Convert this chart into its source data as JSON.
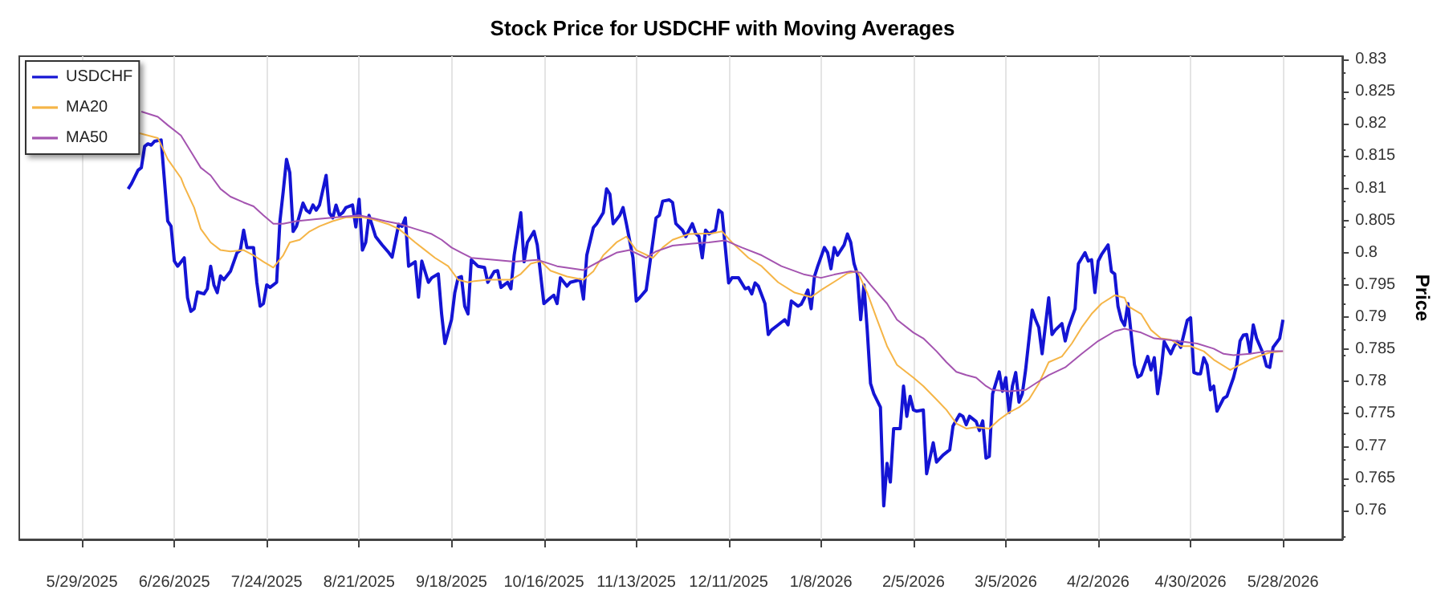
{
  "chart_data": {
    "type": "line",
    "title": "Stock Price for USDCHF with Moving Averages",
    "ylabel": "Price",
    "xlim": [
      "2025-05-10",
      "2026-06-15"
    ],
    "xticks": [
      {
        "value": "2025-05-29",
        "label": "5/29/2025"
      },
      {
        "value": "2025-06-26",
        "label": "6/26/2025"
      },
      {
        "value": "2025-07-24",
        "label": "7/24/2025"
      },
      {
        "value": "2025-08-21",
        "label": "8/21/2025"
      },
      {
        "value": "2025-09-18",
        "label": "9/18/2025"
      },
      {
        "value": "2025-10-16",
        "label": "10/16/2025"
      },
      {
        "value": "2025-11-13",
        "label": "11/13/2025"
      },
      {
        "value": "2025-12-11",
        "label": "12/11/2025"
      },
      {
        "value": "2026-01-08",
        "label": "1/8/2026"
      },
      {
        "value": "2026-02-05",
        "label": "2/5/2026"
      },
      {
        "value": "2026-03-05",
        "label": "3/5/2026"
      },
      {
        "value": "2026-04-02",
        "label": "4/2/2026"
      },
      {
        "value": "2026-04-30",
        "label": "4/30/2026"
      },
      {
        "value": "2026-05-28",
        "label": "5/28/2026"
      }
    ],
    "ylim": [
      0.7555,
      0.8305
    ],
    "yticks": [
      0.76,
      0.765,
      0.77,
      0.775,
      0.78,
      0.785,
      0.79,
      0.795,
      0.8,
      0.805,
      0.81,
      0.815,
      0.82,
      0.825,
      0.83
    ],
    "grid": "x",
    "legend": "top left",
    "marker": "none",
    "line_style": "solid",
    "series": [
      {
        "name": "USDCHF",
        "color": "#1414d4",
        "x": [
          "2025-06-12",
          "2025-06-13",
          "2025-06-15",
          "2025-06-16",
          "2025-06-17",
          "2025-06-18",
          "2025-06-19",
          "2025-06-20",
          "2025-06-22",
          "2025-06-24",
          "2025-06-25",
          "2025-06-26",
          "2025-06-27",
          "2025-06-29",
          "2025-06-30",
          "2025-07-01",
          "2025-07-02",
          "2025-07-03",
          "2025-07-05",
          "2025-07-06",
          "2025-07-07",
          "2025-07-08",
          "2025-07-09",
          "2025-07-10",
          "2025-07-11",
          "2025-07-13",
          "2025-07-15",
          "2025-07-16",
          "2025-07-17",
          "2025-07-18",
          "2025-07-20",
          "2025-07-21",
          "2025-07-22",
          "2025-07-23",
          "2025-07-24",
          "2025-07-25",
          "2025-07-27",
          "2025-07-28",
          "2025-07-29",
          "2025-07-30",
          "2025-07-31",
          "2025-08-01",
          "2025-08-02",
          "2025-08-04",
          "2025-08-05",
          "2025-08-06",
          "2025-08-07",
          "2025-08-08",
          "2025-08-09",
          "2025-08-11",
          "2025-08-12",
          "2025-08-13",
          "2025-08-14",
          "2025-08-15",
          "2025-08-16",
          "2025-08-17",
          "2025-08-19",
          "2025-08-20",
          "2025-08-21",
          "2025-08-22",
          "2025-08-23",
          "2025-08-24",
          "2025-08-26",
          "2025-08-28",
          "2025-08-30",
          "2025-08-31",
          "2025-09-02",
          "2025-09-03",
          "2025-09-04",
          "2025-09-05",
          "2025-09-07",
          "2025-09-08",
          "2025-09-09",
          "2025-09-11",
          "2025-09-12",
          "2025-09-14",
          "2025-09-15",
          "2025-09-16",
          "2025-09-18",
          "2025-09-19",
          "2025-09-20",
          "2025-09-21",
          "2025-09-22",
          "2025-09-23",
          "2025-09-24",
          "2025-09-26",
          "2025-09-28",
          "2025-09-29",
          "2025-10-01",
          "2025-10-02",
          "2025-10-03",
          "2025-10-04",
          "2025-10-05",
          "2025-10-06",
          "2025-10-07",
          "2025-10-09",
          "2025-10-10",
          "2025-10-11",
          "2025-10-13",
          "2025-10-14",
          "2025-10-16",
          "2025-10-18",
          "2025-10-19",
          "2025-10-20",
          "2025-10-21",
          "2025-10-23",
          "2025-10-24",
          "2025-10-27",
          "2025-10-28",
          "2025-10-29",
          "2025-10-31",
          "2025-11-01",
          "2025-11-03",
          "2025-11-04",
          "2025-11-05",
          "2025-11-06",
          "2025-11-08",
          "2025-11-09",
          "2025-11-10",
          "2025-11-12",
          "2025-11-13",
          "2025-11-14",
          "2025-11-16",
          "2025-11-17",
          "2025-11-19",
          "2025-11-20",
          "2025-11-21",
          "2025-11-23",
          "2025-11-24",
          "2025-11-25",
          "2025-11-27",
          "2025-11-28",
          "2025-11-30",
          "2025-12-01",
          "2025-12-02",
          "2025-12-03",
          "2025-12-04",
          "2025-12-05",
          "2025-12-07",
          "2025-12-08",
          "2025-12-09",
          "2025-12-11",
          "2025-12-12",
          "2025-12-14",
          "2025-12-16",
          "2025-12-17",
          "2025-12-18",
          "2025-12-19",
          "2025-12-20",
          "2025-12-22",
          "2025-12-23",
          "2025-12-24",
          "2025-12-26",
          "2025-12-28",
          "2025-12-29",
          "2025-12-30",
          "2026-01-01",
          "2026-01-02",
          "2026-01-03",
          "2026-01-04",
          "2026-01-05",
          "2026-01-06",
          "2026-01-07",
          "2026-01-09",
          "2026-01-10",
          "2026-01-11",
          "2026-01-12",
          "2026-01-13",
          "2026-01-15",
          "2026-01-16",
          "2026-01-17",
          "2026-01-18",
          "2026-01-19",
          "2026-01-20",
          "2026-01-21",
          "2026-01-22",
          "2026-01-23",
          "2026-01-24",
          "2026-01-26",
          "2026-01-27",
          "2026-01-28",
          "2026-01-29",
          "2026-01-30",
          "2026-02-01",
          "2026-02-02",
          "2026-02-03",
          "2026-02-04",
          "2026-02-05",
          "2026-02-06",
          "2026-02-08",
          "2026-02-09",
          "2026-02-11",
          "2026-02-12",
          "2026-02-14",
          "2026-02-16",
          "2026-02-17",
          "2026-02-19",
          "2026-02-20",
          "2026-02-21",
          "2026-02-22",
          "2026-02-24",
          "2026-02-25",
          "2026-02-26",
          "2026-02-27",
          "2026-02-28",
          "2026-03-01",
          "2026-03-03",
          "2026-03-04",
          "2026-03-05",
          "2026-03-06",
          "2026-03-07",
          "2026-03-08",
          "2026-03-09",
          "2026-03-10",
          "2026-03-11",
          "2026-03-13",
          "2026-03-14",
          "2026-03-15",
          "2026-03-16",
          "2026-03-18",
          "2026-03-19",
          "2026-03-20",
          "2026-03-22",
          "2026-03-23",
          "2026-03-24",
          "2026-03-26",
          "2026-03-27",
          "2026-03-29",
          "2026-03-30",
          "2026-03-31",
          "2026-04-01",
          "2026-04-02",
          "2026-04-03",
          "2026-04-05",
          "2026-04-06",
          "2026-04-07",
          "2026-04-08",
          "2026-04-09",
          "2026-04-10",
          "2026-04-11",
          "2026-04-13",
          "2026-04-14",
          "2026-04-15",
          "2026-04-17",
          "2026-04-18",
          "2026-04-19",
          "2026-04-20",
          "2026-04-21",
          "2026-04-22",
          "2026-04-24",
          "2026-04-25",
          "2026-04-26",
          "2026-04-27",
          "2026-04-29",
          "2026-04-30",
          "2026-05-01",
          "2026-05-02",
          "2026-05-03",
          "2026-05-04",
          "2026-05-05",
          "2026-05-06",
          "2026-05-07",
          "2026-05-08",
          "2026-05-09",
          "2026-05-10",
          "2026-05-11",
          "2026-05-13",
          "2026-05-14",
          "2026-05-15",
          "2026-05-16",
          "2026-05-17",
          "2026-05-18",
          "2026-05-19",
          "2026-05-20",
          "2026-05-22",
          "2026-05-23",
          "2026-05-24",
          "2026-05-25",
          "2026-05-27",
          "2026-05-28"
        ],
        "values": [
          0.8099,
          0.8107,
          0.8128,
          0.8132,
          0.8165,
          0.8169,
          0.8167,
          0.8173,
          0.8175,
          0.8049,
          0.8041,
          0.7987,
          0.7979,
          0.7992,
          0.793,
          0.7909,
          0.7913,
          0.7939,
          0.7936,
          0.7944,
          0.7979,
          0.795,
          0.7938,
          0.7964,
          0.7958,
          0.7971,
          0.8,
          0.8004,
          0.8035,
          0.8008,
          0.8008,
          0.7954,
          0.7917,
          0.7921,
          0.795,
          0.7946,
          0.7954,
          0.8049,
          0.8095,
          0.8145,
          0.8124,
          0.8033,
          0.8041,
          0.8077,
          0.8066,
          0.8062,
          0.8074,
          0.8066,
          0.8074,
          0.812,
          0.8062,
          0.8054,
          0.8074,
          0.8058,
          0.8062,
          0.807,
          0.8074,
          0.804,
          0.8083,
          0.8004,
          0.8016,
          0.8058,
          0.8025,
          0.8012,
          0.8,
          0.7993,
          0.8044,
          0.8041,
          0.8054,
          0.7979,
          0.7986,
          0.7931,
          0.7987,
          0.7954,
          0.7961,
          0.7967,
          0.7905,
          0.7859,
          0.7896,
          0.7938,
          0.7961,
          0.7963,
          0.7917,
          0.7905,
          0.7989,
          0.7979,
          0.7977,
          0.7954,
          0.7971,
          0.7972,
          0.7946,
          0.795,
          0.7954,
          0.7944,
          0.7996,
          0.8062,
          0.7986,
          0.8016,
          0.8033,
          0.8012,
          0.7921,
          0.793,
          0.7934,
          0.7921,
          0.7961,
          0.7948,
          0.7954,
          0.7958,
          0.7928,
          0.7996,
          0.8039,
          0.8045,
          0.8062,
          0.8099,
          0.8091,
          0.8045,
          0.8058,
          0.807,
          0.8045,
          0.7992,
          0.7925,
          0.793,
          0.7942,
          0.7979,
          0.8054,
          0.8058,
          0.808,
          0.8082,
          0.8078,
          0.8045,
          0.8035,
          0.8025,
          0.8045,
          0.803,
          0.8025,
          0.7992,
          0.8035,
          0.8029,
          0.8035,
          0.8066,
          0.8062,
          0.7953,
          0.7961,
          0.7961,
          0.7944,
          0.7946,
          0.7936,
          0.7953,
          0.7948,
          0.7921,
          0.7873,
          0.788,
          0.7888,
          0.7896,
          0.7888,
          0.7925,
          0.7917,
          0.792,
          0.793,
          0.7942,
          0.7913,
          0.7963,
          0.7979,
          0.8008,
          0.8,
          0.7975,
          0.8008,
          0.7996,
          0.8012,
          0.8029,
          0.8016,
          0.7983,
          0.7967,
          0.7896,
          0.795,
          0.788,
          0.7797,
          0.7781,
          0.776,
          0.7607,
          0.7673,
          0.7644,
          0.7727,
          0.7727,
          0.7793,
          0.7746,
          0.7777,
          0.7756,
          0.7754,
          0.7756,
          0.7657,
          0.7705,
          0.7675,
          0.7686,
          0.7694,
          0.7731,
          0.7749,
          0.7746,
          0.7733,
          0.7746,
          0.7738,
          0.7724,
          0.7739,
          0.7681,
          0.7684,
          0.7781,
          0.7815,
          0.7785,
          0.7806,
          0.7752,
          0.7793,
          0.7814,
          0.7768,
          0.7781,
          0.7818,
          0.7911,
          0.7896,
          0.7884,
          0.7843,
          0.793,
          0.7873,
          0.788,
          0.789,
          0.7863,
          0.7884,
          0.7913,
          0.7983,
          0.8,
          0.7987,
          0.7989,
          0.7938,
          0.7987,
          0.7997,
          0.8012,
          0.7971,
          0.7967,
          0.7917,
          0.7896,
          0.7887,
          0.7921,
          0.7826,
          0.7807,
          0.781,
          0.7839,
          0.7818,
          0.7837,
          0.7781,
          0.7814,
          0.7862,
          0.7843,
          0.7855,
          0.7862,
          0.7853,
          0.7895,
          0.7899,
          0.7814,
          0.7812,
          0.7812,
          0.7837,
          0.7826,
          0.7787,
          0.7793,
          0.7754,
          0.7764,
          0.7774,
          0.7777,
          0.7806,
          0.7826,
          0.7863,
          0.7872,
          0.7873,
          0.7845,
          0.7888,
          0.7867,
          0.7843,
          0.7824,
          0.7822,
          0.7853,
          0.7867,
          0.7896
        ]
      },
      {
        "name": "MA20",
        "color": "#f5b547",
        "x": [
          "2025-06-15",
          "2025-06-18",
          "2025-06-21",
          "2025-06-24",
          "2025-06-28",
          "2025-06-29",
          "2025-07-02",
          "2025-07-04",
          "2025-07-07",
          "2025-07-10",
          "2025-07-13",
          "2025-07-17",
          "2025-07-20",
          "2025-07-23",
          "2025-07-26",
          "2025-07-29",
          "2025-07-31",
          "2025-08-03",
          "2025-08-06",
          "2025-08-09",
          "2025-08-13",
          "2025-08-17",
          "2025-08-22",
          "2025-08-25",
          "2025-08-30",
          "2025-09-02",
          "2025-09-07",
          "2025-09-10",
          "2025-09-13",
          "2025-09-17",
          "2025-09-20",
          "2025-09-23",
          "2025-09-25",
          "2025-09-29",
          "2025-10-06",
          "2025-10-09",
          "2025-10-12",
          "2025-10-15",
          "2025-10-18",
          "2025-10-23",
          "2025-10-28",
          "2025-10-31",
          "2025-11-03",
          "2025-11-07",
          "2025-11-10",
          "2025-11-13",
          "2025-11-18",
          "2025-11-21",
          "2025-11-24",
          "2025-11-29",
          "2025-12-06",
          "2025-12-09",
          "2025-12-12",
          "2025-12-17",
          "2025-12-21",
          "2025-12-26",
          "2025-12-31",
          "2026-01-05",
          "2026-01-08",
          "2026-01-13",
          "2026-01-16",
          "2026-01-19",
          "2026-01-22",
          "2026-01-25",
          "2026-01-28",
          "2026-01-31",
          "2026-02-05",
          "2026-02-08",
          "2026-02-12",
          "2026-02-15",
          "2026-02-18",
          "2026-02-21",
          "2026-02-24",
          "2026-02-28",
          "2026-03-03",
          "2026-03-06",
          "2026-03-09",
          "2026-03-12",
          "2026-03-15",
          "2026-03-18",
          "2026-03-22",
          "2026-03-25",
          "2026-03-28",
          "2026-03-31",
          "2026-04-03",
          "2026-04-07",
          "2026-04-10",
          "2026-04-11",
          "2026-04-15",
          "2026-04-18",
          "2026-04-21",
          "2026-04-24",
          "2026-04-27",
          "2026-04-30",
          "2026-05-04",
          "2026-05-07",
          "2026-05-12",
          "2026-05-15",
          "2026-05-18",
          "2026-05-21",
          "2026-05-24",
          "2026-05-28"
        ],
        "values": [
          0.8186,
          0.8182,
          0.8178,
          0.8145,
          0.8116,
          0.8103,
          0.807,
          0.8037,
          0.8016,
          0.8004,
          0.8002,
          0.8004,
          0.7996,
          0.7986,
          0.7977,
          0.7996,
          0.8016,
          0.802,
          0.8033,
          0.8041,
          0.8049,
          0.8055,
          0.8055,
          0.8052,
          0.8044,
          0.8037,
          0.8016,
          0.8004,
          0.7992,
          0.7979,
          0.7958,
          0.7954,
          0.7956,
          0.7958,
          0.7958,
          0.7967,
          0.7983,
          0.7987,
          0.7972,
          0.7963,
          0.7958,
          0.7971,
          0.7996,
          0.8016,
          0.8025,
          0.8004,
          0.7992,
          0.8008,
          0.802,
          0.8029,
          0.803,
          0.8033,
          0.8016,
          0.7992,
          0.7979,
          0.7954,
          0.7938,
          0.7931,
          0.7942,
          0.7958,
          0.7968,
          0.7971,
          0.7938,
          0.7896,
          0.7855,
          0.7826,
          0.7806,
          0.7793,
          0.7772,
          0.7756,
          0.7735,
          0.7727,
          0.7729,
          0.7727,
          0.7741,
          0.7752,
          0.776,
          0.7772,
          0.7797,
          0.783,
          0.7839,
          0.7859,
          0.7884,
          0.7905,
          0.7921,
          0.7934,
          0.793,
          0.7917,
          0.7905,
          0.788,
          0.7867,
          0.7865,
          0.7855,
          0.7855,
          0.7847,
          0.7834,
          0.7818,
          0.7826,
          0.7834,
          0.784,
          0.7845,
          0.7847
        ]
      },
      {
        "name": "MA50",
        "color": "#a454b0",
        "x": [
          "2025-06-16",
          "2025-06-21",
          "2025-06-24",
          "2025-06-28",
          "2025-07-01",
          "2025-07-04",
          "2025-07-07",
          "2025-07-10",
          "2025-07-13",
          "2025-07-17",
          "2025-07-20",
          "2025-07-23",
          "2025-07-26",
          "2025-07-29",
          "2025-08-02",
          "2025-08-08",
          "2025-08-14",
          "2025-08-21",
          "2025-08-24",
          "2025-08-29",
          "2025-09-02",
          "2025-09-07",
          "2025-09-12",
          "2025-09-15",
          "2025-09-18",
          "2025-09-21",
          "2025-09-24",
          "2025-10-01",
          "2025-10-07",
          "2025-10-14",
          "2025-10-20",
          "2025-10-28",
          "2025-11-02",
          "2025-11-07",
          "2025-11-11",
          "2025-11-16",
          "2025-11-19",
          "2025-11-24",
          "2025-11-30",
          "2025-12-05",
          "2025-12-10",
          "2025-12-15",
          "2025-12-21",
          "2025-12-27",
          "2026-01-03",
          "2026-01-08",
          "2026-01-12",
          "2026-01-17",
          "2026-01-20",
          "2026-01-23",
          "2026-01-28",
          "2026-01-31",
          "2026-02-05",
          "2026-02-08",
          "2026-02-12",
          "2026-02-15",
          "2026-02-18",
          "2026-02-21",
          "2026-02-24",
          "2026-02-27",
          "2026-03-01",
          "2026-03-06",
          "2026-03-11",
          "2026-03-14",
          "2026-03-18",
          "2026-03-23",
          "2026-03-28",
          "2026-04-02",
          "2026-04-07",
          "2026-04-10",
          "2026-04-15",
          "2026-04-19",
          "2026-04-26",
          "2026-05-02",
          "2026-05-07",
          "2026-05-10",
          "2026-05-13",
          "2026-05-18",
          "2026-05-23",
          "2026-05-28"
        ],
        "values": [
          0.8219,
          0.8211,
          0.8198,
          0.8182,
          0.8157,
          0.8132,
          0.812,
          0.8099,
          0.8087,
          0.8078,
          0.8072,
          0.8058,
          0.8045,
          0.8045,
          0.8049,
          0.8052,
          0.8055,
          0.8058,
          0.8055,
          0.8049,
          0.8045,
          0.8037,
          0.8029,
          0.802,
          0.8008,
          0.8,
          0.7992,
          0.7989,
          0.7986,
          0.7989,
          0.7979,
          0.7973,
          0.7987,
          0.8,
          0.8004,
          0.7992,
          0.8002,
          0.8011,
          0.8014,
          0.8016,
          0.8019,
          0.8008,
          0.7996,
          0.7979,
          0.7966,
          0.7961,
          0.7966,
          0.7971,
          0.7969,
          0.795,
          0.7921,
          0.7896,
          0.7876,
          0.7867,
          0.7847,
          0.783,
          0.7815,
          0.781,
          0.7806,
          0.7793,
          0.7787,
          0.7785,
          0.7787,
          0.7797,
          0.781,
          0.7822,
          0.7843,
          0.7863,
          0.7878,
          0.7882,
          0.7876,
          0.7867,
          0.7863,
          0.7859,
          0.7851,
          0.7843,
          0.7841,
          0.7843,
          0.7847,
          0.7847
        ]
      }
    ]
  }
}
